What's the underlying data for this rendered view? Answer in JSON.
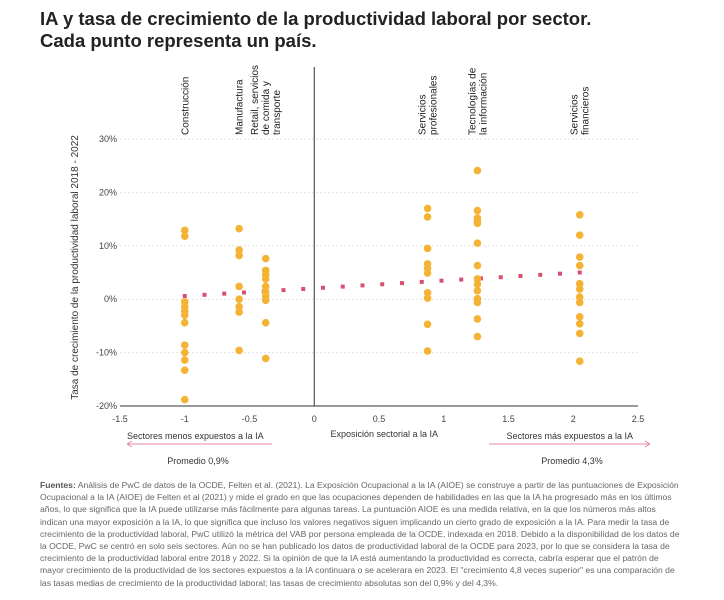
{
  "title": [
    "IA y tasa de crecimiento de la productividad laboral por sector.",
    "Cada punto representa un país."
  ],
  "chart_data": {
    "type": "scatter",
    "xlabel": "Exposición sectorial a la IA",
    "ylabel": "Tasa de crecimiento de la productividad laboral 2018 - 2022",
    "xlim": [
      -1.5,
      2.5
    ],
    "ylim": [
      -20,
      30
    ],
    "xticks": [
      -1.5,
      -1,
      -0.5,
      0,
      0.5,
      1,
      1.5,
      2,
      2.5
    ],
    "xtick_labels": [
      "-1.5",
      "-1",
      "-0.5",
      "0",
      "0.5",
      "1",
      "1.5",
      "2",
      "2.5"
    ],
    "yticks": [
      -20,
      -10,
      0,
      10,
      20,
      30
    ],
    "ytick_labels": [
      "-20%",
      "-10%",
      "0%",
      "10%",
      "20%",
      "30%"
    ],
    "grid": "horizontal dotted",
    "point_color": "#f5b335",
    "trend_color": "#d9506e",
    "sectors": [
      {
        "name": [
          "Construcción"
        ],
        "x": -1.0,
        "values": [
          12.9,
          11.8,
          -0.5,
          -1.4,
          -2.2,
          -3,
          -4.4,
          -8.6,
          -10,
          -11.4,
          -13.3,
          -18.8
        ]
      },
      {
        "name": [
          "Manufactura"
        ],
        "x": -0.58,
        "values": [
          13.2,
          9.2,
          8.2,
          2.4,
          0,
          -1.4,
          -2.4,
          -9.6
        ]
      },
      {
        "name": [
          "Retail, servicios",
          "de comida y",
          "transporte"
        ],
        "x": -0.375,
        "values": [
          7.6,
          5.4,
          4.6,
          3.8,
          2.4,
          1.4,
          0.6,
          -0.2,
          -4.4,
          -11.1
        ]
      },
      {
        "name": [
          "Servicios",
          "profesionales"
        ],
        "x": 0.875,
        "values": [
          17,
          15.4,
          9.5,
          6.6,
          5.8,
          4.9,
          1.2,
          0.2,
          -4.7,
          -9.7
        ]
      },
      {
        "name": [
          "Tecnologías de",
          "la información"
        ],
        "x": 1.26,
        "values": [
          24.1,
          16.6,
          15.2,
          14.7,
          14.2,
          10.5,
          6.3,
          3.8,
          2.8,
          1.6,
          0.1,
          -0.6,
          -3.7,
          -7.0
        ]
      },
      {
        "name": [
          "Servicios",
          "financieros"
        ],
        "x": 2.05,
        "values": [
          15.8,
          12,
          7.9,
          6.3,
          2.9,
          1.9,
          0.4,
          -0.6,
          -3.3,
          -4.6,
          -6.4,
          -11.6
        ]
      }
    ],
    "trend": {
      "x": [
        -1.0,
        2.05
      ],
      "y": [
        0.6,
        5.0
      ]
    },
    "annotations": {
      "left": "Sectores menos expuestos a la IA",
      "right": "Sectores más expuestos a la IA",
      "left_avg": "Promedio 0,9%",
      "right_avg": "Promedio 4,3%"
    }
  },
  "notes": {
    "label": "Fuentes:",
    "text": " Análisis de PwC de datos de la OCDE, Felten et al. (2021). La Exposición Ocupacional a la IA (AIOE) se construye a partir de las puntuaciones de Exposición Ocupacional a la IA (AIOE) de Felten et al (2021) y mide el grado en que las ocupaciones dependen de habilidades en las que la IA ha progresado más en los últimos años, lo que significa que la IA puede utilizarse más fácilmente para algunas tareas. La puntuación AIOE es una medida relativa, en la que los números más altos indican una mayor exposición a la IA, lo que significa que incluso los valores negativos siguen implicando un cierto grado de exposición a la IA. Para medir la tasa de crecimiento de la productividad laboral, PwC utilizó la métrica del VAB por persona empleada de la OCDE, indexada en 2018. Debido a la disponibilidad de los datos de la OCDE, PwC se centró en solo seis sectores. Aún no se han publicado los datos de productividad laboral de la OCDE para 2023, por lo que se considera la tasa de crecimiento de la productividad laboral entre 2018 y 2022. Si la opinión de que la IA está aumentando la productividad es correcta, cabría esperar que el patrón de mayor crecimiento de la productividad de los sectores expuestos a la IA continuara o se acelerara en 2023. El \"crecimiento 4,8 veces superior\" es una comparación de las tasas medias de crecimiento de la productividad laboral; las tasas de crecimiento absolutas son del 0,9% y del 4,3%."
  }
}
